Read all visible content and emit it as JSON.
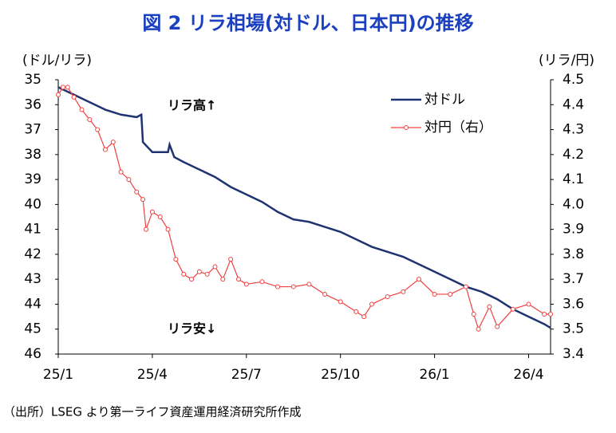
{
  "chart_data": {
    "type": "line",
    "title": "図 2  リラ相場(対ドル、日本円)の推移",
    "y_label": "(ドル/リラ)",
    "y2_label": "(リラ/円)",
    "annotations": [
      "リラ高↑",
      "リラ安↓"
    ],
    "source": "（出所）LSEG より第一ライフ資産運用経済研究所作成",
    "xlim": [
      0,
      15.7
    ],
    "xticks": [
      {
        "value": 0,
        "label": "25/1"
      },
      {
        "value": 3,
        "label": "25/4"
      },
      {
        "value": 6,
        "label": "25/7"
      },
      {
        "value": 9,
        "label": "25/10"
      },
      {
        "value": 12,
        "label": "26/1"
      },
      {
        "value": 15,
        "label": "26/4"
      }
    ],
    "ylim": [
      35,
      46
    ],
    "y_inverted": true,
    "yticks": [
      35,
      36,
      37,
      38,
      39,
      40,
      41,
      42,
      43,
      44,
      45,
      46
    ],
    "y2lim": [
      3.4,
      4.5
    ],
    "y2ticks": [
      4.5,
      4.4,
      4.3,
      4.2,
      4.1,
      {
        "value": 4,
        "label": "4.0"
      },
      3.9,
      3.8,
      3.7,
      3.6,
      3.5,
      3.4
    ],
    "grid": false,
    "legend": "upper right",
    "series": [
      {
        "name": "対ドル",
        "color": "#1f3370",
        "axis": "y",
        "markers": false,
        "x": [
          0,
          0.5,
          1,
          1.5,
          2,
          2.5,
          2.65,
          2.7,
          3,
          3.5,
          3.55,
          3.7,
          4,
          4.5,
          5,
          5.5,
          6,
          6.5,
          7,
          7.5,
          8,
          8.5,
          9,
          9.5,
          10,
          10.5,
          11,
          11.5,
          12,
          12.5,
          13,
          13.5,
          14,
          14.5,
          15,
          15.5,
          15.7
        ],
        "values": [
          35.3,
          35.6,
          35.9,
          36.2,
          36.4,
          36.5,
          36.4,
          37.5,
          37.9,
          37.9,
          37.6,
          38.1,
          38.3,
          38.6,
          38.9,
          39.3,
          39.6,
          39.9,
          40.3,
          40.6,
          40.7,
          40.9,
          41.1,
          41.4,
          41.7,
          41.9,
          42.1,
          42.4,
          42.7,
          43.0,
          43.3,
          43.5,
          43.8,
          44.2,
          44.5,
          44.8,
          44.95
        ]
      },
      {
        "name": "対円（右）",
        "color": "#f04040",
        "axis": "y2",
        "markers": true,
        "x": [
          0,
          0.15,
          0.3,
          0.5,
          0.75,
          1,
          1.25,
          1.5,
          1.75,
          2,
          2.25,
          2.5,
          2.7,
          2.8,
          3,
          3.25,
          3.5,
          3.75,
          4,
          4.25,
          4.5,
          4.75,
          5,
          5.25,
          5.5,
          5.75,
          6,
          6.5,
          7,
          7.5,
          8,
          8.5,
          9,
          9.5,
          9.75,
          10,
          10.5,
          11,
          11.5,
          12,
          12.5,
          13,
          13.25,
          13.4,
          13.75,
          14,
          14.5,
          15,
          15.5,
          15.7
        ],
        "values": [
          4.44,
          4.47,
          4.47,
          4.43,
          4.38,
          4.34,
          4.3,
          4.22,
          4.25,
          4.13,
          4.1,
          4.05,
          4.02,
          3.9,
          3.97,
          3.95,
          3.9,
          3.78,
          3.72,
          3.7,
          3.73,
          3.72,
          3.75,
          3.7,
          3.78,
          3.7,
          3.68,
          3.69,
          3.67,
          3.67,
          3.68,
          3.64,
          3.61,
          3.57,
          3.55,
          3.6,
          3.63,
          3.65,
          3.7,
          3.64,
          3.64,
          3.67,
          3.56,
          3.5,
          3.59,
          3.51,
          3.58,
          3.6,
          3.56,
          3.56
        ]
      }
    ]
  }
}
